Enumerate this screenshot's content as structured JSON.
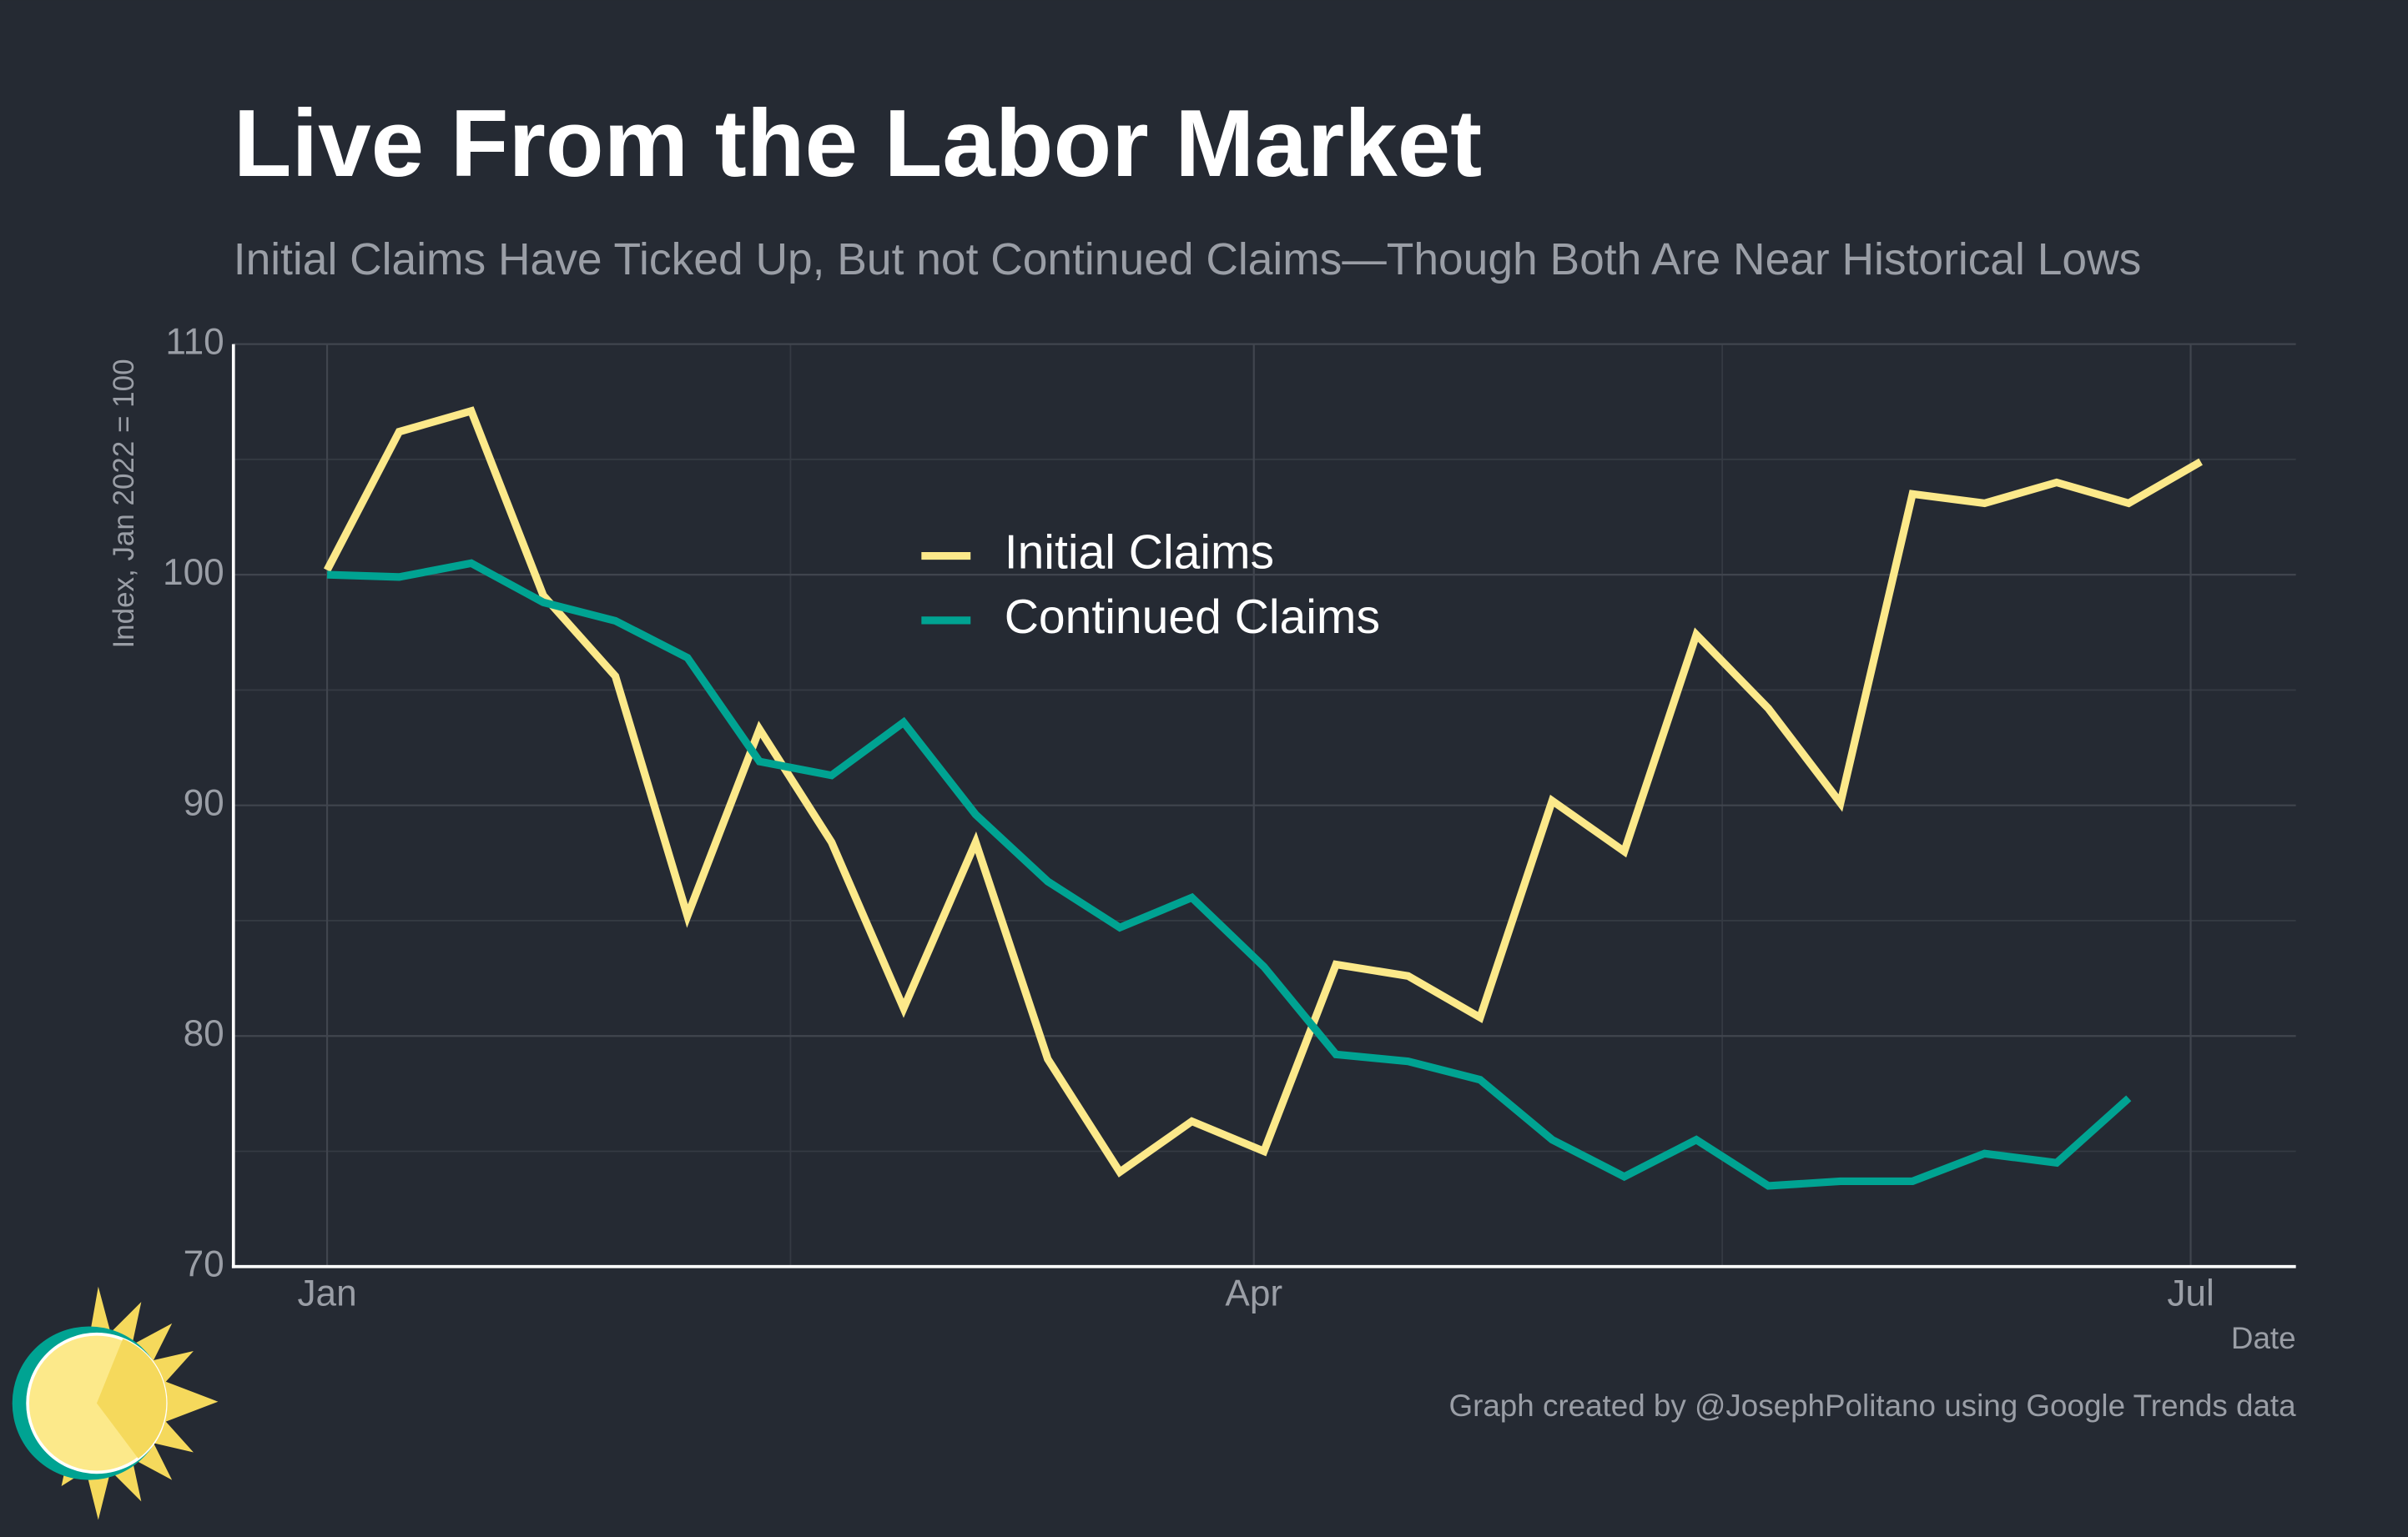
{
  "chart_data": {
    "type": "line",
    "title": "Live From the Labor Market",
    "subtitle": "Initial Claims Have Ticked Up, But not Continued Claims—Though Both Are Near Historical Lows",
    "y_label": "Index, Jan 2022 = 100",
    "x_label": "Date",
    "credit": "Graph created by @JosephPolitano using Google Trends data",
    "x": [
      0,
      1,
      2,
      3,
      4,
      5,
      6,
      7,
      8,
      9,
      10,
      11,
      12,
      13,
      14,
      15,
      16,
      17,
      18,
      19,
      20,
      21,
      22,
      23,
      24,
      25,
      26
    ],
    "series": [
      {
        "name": "Initial Claims",
        "color": "#fce98a",
        "values": [
          100.2,
          106.2,
          107.1,
          99.1,
          95.6,
          85.2,
          93.3,
          88.4,
          81.2,
          88.4,
          79.0,
          74.1,
          76.3,
          75.0,
          83.1,
          82.6,
          80.8,
          90.2,
          88.0,
          97.4,
          94.2,
          90.1,
          103.5,
          103.1,
          104.0,
          103.1,
          104.9
        ]
      },
      {
        "name": "Continued Claims",
        "color": "#00a392",
        "values": [
          100,
          99.9,
          100.5,
          98.8,
          98.0,
          96.4,
          91.9,
          91.3,
          93.6,
          89.6,
          86.7,
          84.7,
          86.0,
          83.0,
          79.2,
          78.9,
          78.1,
          75.5,
          73.9,
          75.5,
          73.5,
          73.7,
          73.7,
          74.9,
          74.5,
          77.3,
          null
        ]
      }
    ],
    "xlim": [
      -1.3,
      27.32
    ],
    "xticks": [
      {
        "value": 0,
        "label": "Jan"
      },
      {
        "value": 12.86,
        "label": "Apr"
      },
      {
        "value": 25.86,
        "label": "Jul"
      }
    ],
    "xminor_ticks": [
      6.43,
      19.36
    ],
    "ylim": [
      70,
      110
    ],
    "yticks": [
      70,
      80,
      90,
      100,
      110
    ],
    "yminor_ticks": [
      75,
      85,
      95,
      105
    ],
    "grid": true,
    "legend": "top"
  }
}
